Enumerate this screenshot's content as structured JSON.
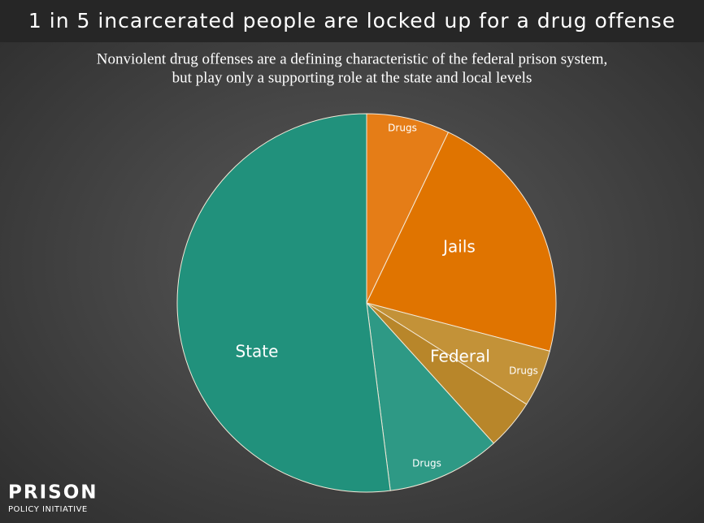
{
  "chart_data": {
    "type": "pie",
    "title": "1 in 5 incarcerated people are locked up for a drug offense",
    "subtitle": [
      "Nonviolent drug offenses are a defining characteristic of the federal prison system,",
      "but play only a supporting role at the state and local levels"
    ],
    "categories": [
      "Drugs",
      "Jails",
      "Drugs",
      "Federal",
      "Drugs",
      "State"
    ],
    "values": [
      7.1,
      22.0,
      4.9,
      4.3,
      9.7,
      52.0
    ],
    "colors": [
      "#e57d17",
      "#e07400",
      "#c39238",
      "#b8862a",
      "#2e9985",
      "#21917c"
    ]
  },
  "logo": {
    "line1": "PRISON",
    "line2": "POLICY INITIATIVE"
  }
}
